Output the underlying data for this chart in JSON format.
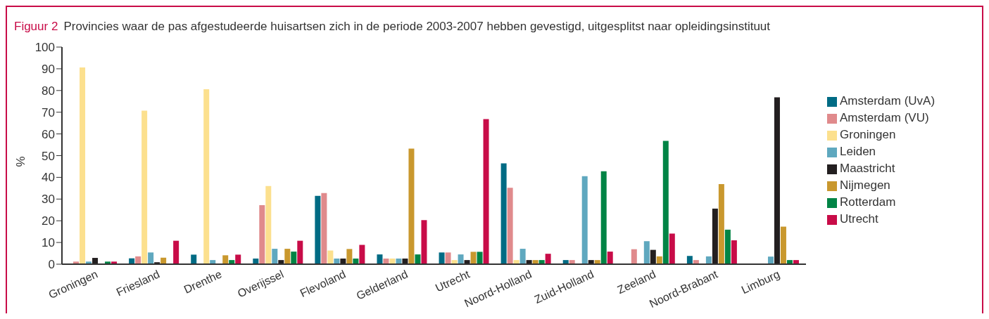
{
  "chart_data": {
    "type": "bar",
    "title": "Figuur 2",
    "subtitle": "Provincies waar de pas afgestudeerde huisartsen zich in de periode 2003-2007 hebben gevestigd, uitgesplitst naar opleidingsinstituut",
    "ylabel": "%",
    "categories": [
      "Groningen",
      "Friesland",
      "Drenthe",
      "Overijssel",
      "Flevoland",
      "Gelderland",
      "Utrecht",
      "Noord-Holland",
      "Zuid-Holland",
      "Zeeland",
      "Noord-Brabant",
      "Limburg"
    ],
    "series": [
      {
        "name": "Amsterdam (UvA)",
        "color": "#006b84",
        "values": [
          0,
          2.7,
          4.4,
          2.6,
          31.5,
          4.5,
          5.4,
          46.4,
          1.9,
          0,
          3.8,
          0
        ]
      },
      {
        "name": "Amsterdam (VU)",
        "color": "#e08a8c",
        "values": [
          1.2,
          3.6,
          0,
          27.2,
          32.8,
          2.6,
          5.4,
          35.2,
          1.9,
          6.9,
          1.9,
          0
        ]
      },
      {
        "name": "Groningen",
        "color": "#fce08e",
        "values": [
          90.6,
          70.7,
          80.6,
          36.0,
          6.3,
          2.6,
          1.9,
          1.9,
          0,
          0,
          0,
          0
        ]
      },
      {
        "name": "Leiden",
        "color": "#5fa8bf",
        "values": [
          1.2,
          5.4,
          1.9,
          7.1,
          2.6,
          2.6,
          4.5,
          7.1,
          40.5,
          10.6,
          3.6,
          3.5
        ]
      },
      {
        "name": "Maastricht",
        "color": "#231f20",
        "values": [
          2.9,
          0.9,
          0,
          1.9,
          2.6,
          2.6,
          1.9,
          1.9,
          1.9,
          6.6,
          25.6,
          76.9
        ]
      },
      {
        "name": "Nijmegen",
        "color": "#c9982e",
        "values": [
          0,
          3.0,
          4.1,
          7.1,
          7.0,
          53.2,
          5.7,
          1.9,
          1.9,
          3.6,
          36.9,
          17.3
        ]
      },
      {
        "name": "Rotterdam",
        "color": "#008445",
        "values": [
          1.2,
          0,
          1.9,
          5.8,
          2.6,
          4.5,
          5.7,
          1.9,
          42.8,
          56.8,
          15.9,
          1.9
        ]
      },
      {
        "name": "Utrecht",
        "color": "#c80c48",
        "values": [
          1.2,
          10.8,
          4.4,
          10.8,
          8.9,
          20.3,
          66.8,
          4.8,
          5.8,
          14.1,
          11.0,
          1.9
        ]
      }
    ],
    "ylim": [
      0,
      100
    ],
    "yticks": [
      0,
      10,
      20,
      30,
      40,
      50,
      60,
      70,
      80,
      90,
      100
    ],
    "grid": false,
    "legend": "right"
  }
}
